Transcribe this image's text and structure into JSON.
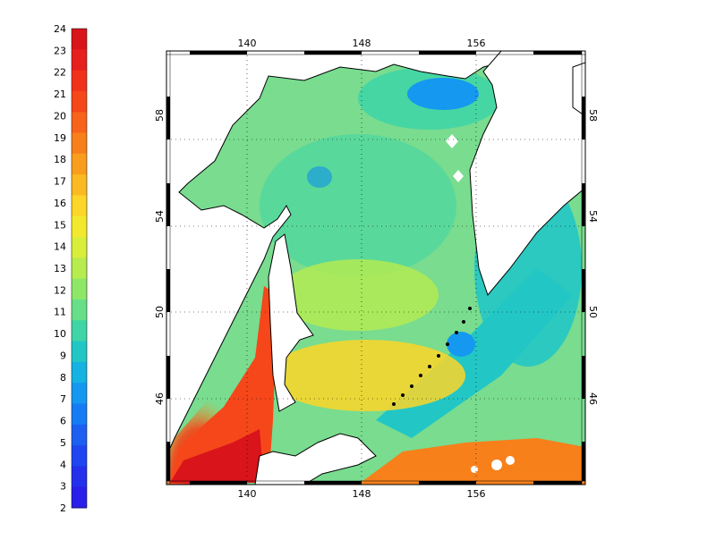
{
  "colorbar": {
    "labels": [
      "24",
      "23",
      "22",
      "21",
      "20",
      "19",
      "18",
      "17",
      "16",
      "15",
      "14",
      "13",
      "12",
      "11",
      "10",
      "9",
      "8",
      "7",
      "6",
      "5",
      "4",
      "3",
      "2"
    ],
    "colors": [
      "#d9141b",
      "#e6201c",
      "#f0321b",
      "#f5471a",
      "#f7631a",
      "#f7801b",
      "#f99d1d",
      "#fbba21",
      "#fcd628",
      "#f2e92f",
      "#d9ee3a",
      "#b6ec4d",
      "#8fe768",
      "#66df88",
      "#40d5a6",
      "#22c7c5",
      "#16b2e1",
      "#1598f0",
      "#167cf3",
      "#1c5ff2",
      "#1f46f0",
      "#2430ec",
      "#2a1fe8"
    ]
  },
  "map": {
    "top_lon_labels": [
      "140",
      "148",
      "156"
    ],
    "bottom_lon_labels": [
      "140",
      "148",
      "156"
    ],
    "left_lat_labels": [
      "58",
      "54",
      "50",
      "46"
    ],
    "right_lat_labels": [
      "58",
      "54",
      "50",
      "46"
    ],
    "bg_color": "#79dc8f",
    "land_color": "#ffffff"
  }
}
